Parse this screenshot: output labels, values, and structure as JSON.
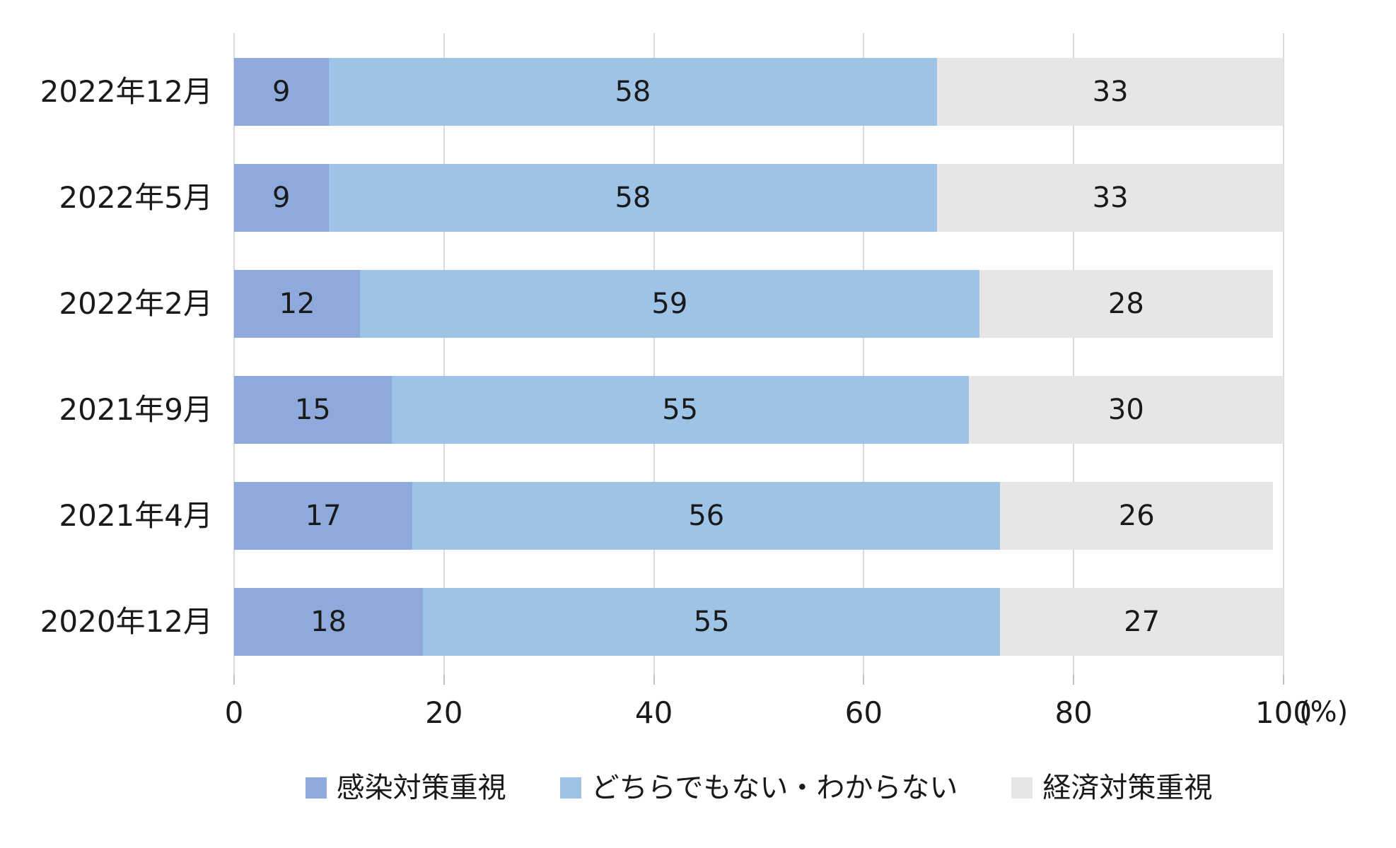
{
  "chart_data": {
    "type": "bar",
    "orientation": "horizontal",
    "stacked": true,
    "title": "",
    "unit_label": "(%)",
    "categories": [
      "2022年12月",
      "2022年5月",
      "2022年2月",
      "2021年9月",
      "2021年4月",
      "2020年12月"
    ],
    "series": [
      {
        "name": "感染対策重視",
        "color": "#8EA9DB",
        "values": [
          9,
          9,
          12,
          15,
          17,
          18
        ]
      },
      {
        "name": "どちらでもない・わからない",
        "color": "#9DC3E6",
        "values": [
          58,
          58,
          59,
          55,
          56,
          55
        ]
      },
      {
        "name": "経済対策重視",
        "color": "#E7E6E6",
        "values": [
          33,
          33,
          28,
          30,
          26,
          27
        ]
      }
    ],
    "x_ticks": [
      0,
      20,
      40,
      60,
      80,
      100
    ],
    "xlim": [
      0,
      100
    ],
    "grid": true,
    "legend_position": "bottom",
    "colors": {
      "gridline": "#D9D9D9",
      "tick_mark": "#BFBFBF",
      "text": "#1A1A1A",
      "background": "#FFFFFF"
    }
  }
}
